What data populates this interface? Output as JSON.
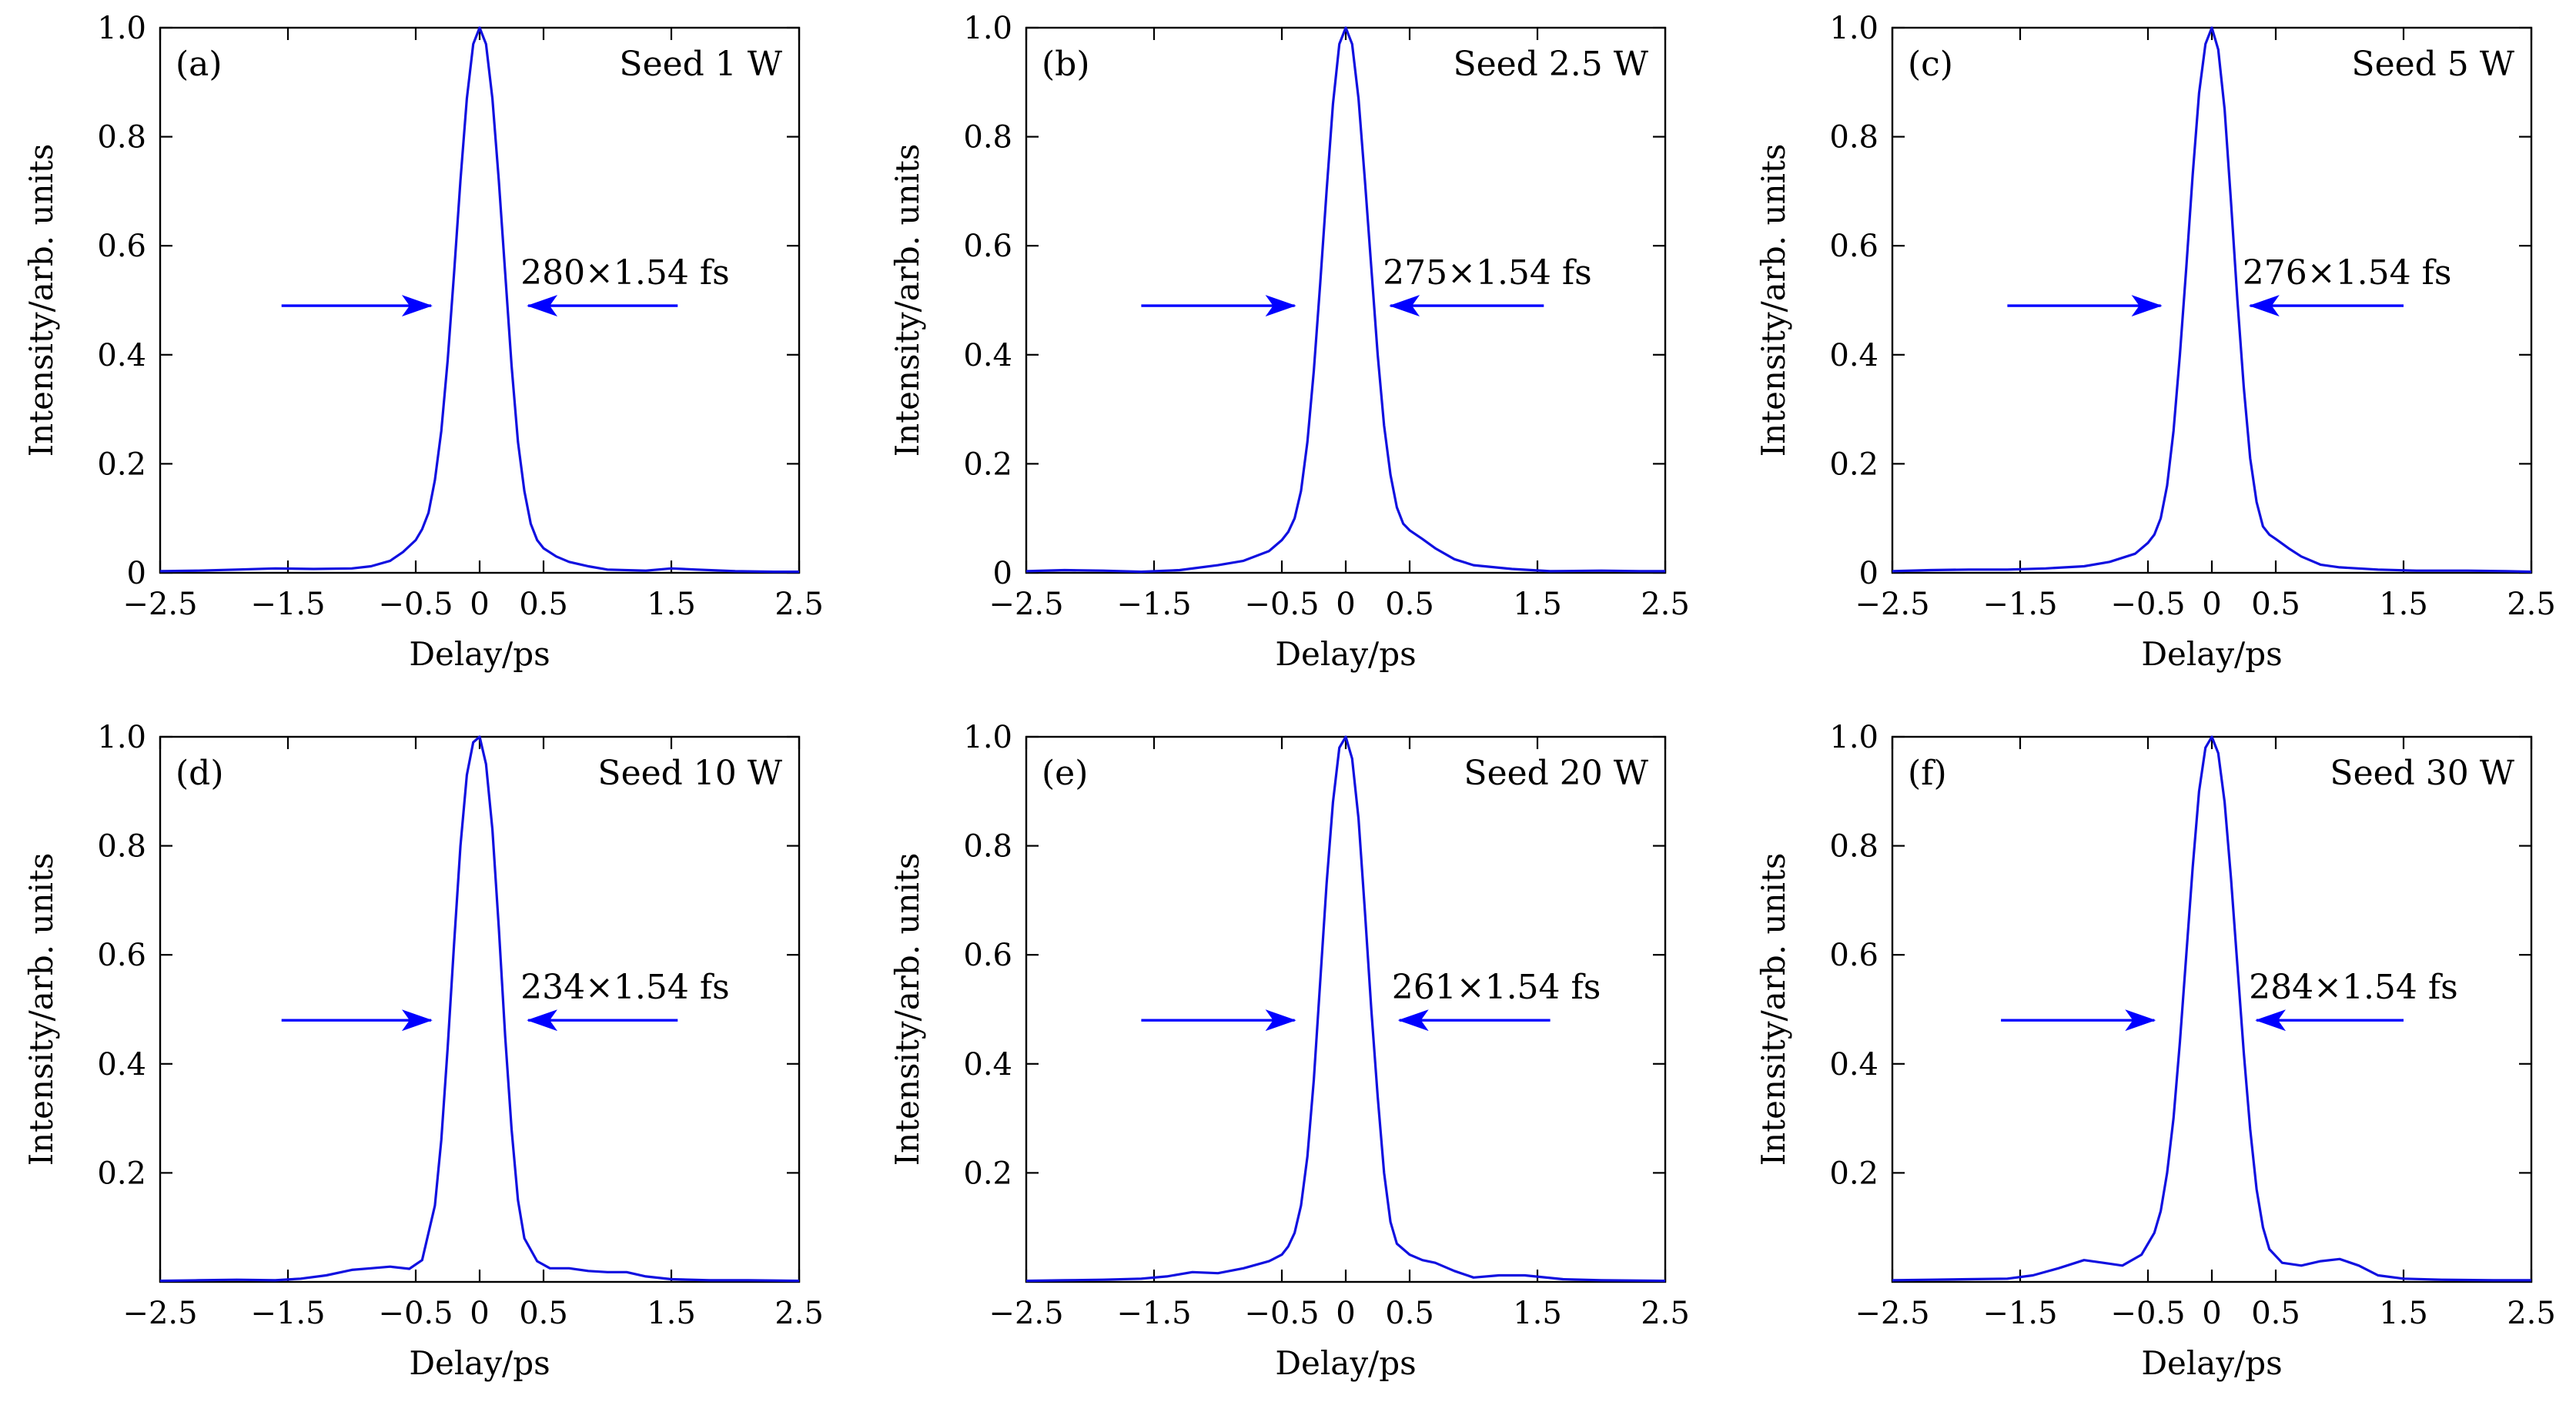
{
  "colors": {
    "trace": "#1010e0",
    "arrow": "#0000ff",
    "axis": "#000000"
  },
  "chart_data": [
    {
      "type": "line",
      "panel_label": "(a)",
      "title": "Seed 1 W",
      "fwhm_label": "280×1.54 fs",
      "xlabel": "Delay/ps",
      "ylabel": "Intensity/arb. units",
      "xlim": [
        -2.5,
        2.5
      ],
      "ylim": [
        0,
        1.0
      ],
      "xticks": [
        -2.5,
        -1.5,
        -0.5,
        0,
        0.5,
        1.5,
        2.5
      ],
      "xtick_labels": [
        "−2.5",
        "−1.5",
        "−0.5",
        "0",
        "0.5",
        "1.5",
        "2.5"
      ],
      "yticks": [
        0,
        0.2,
        0.4,
        0.6,
        0.8,
        1.0
      ],
      "ytick_labels": [
        "0",
        "0.2",
        "0.4",
        "0.6",
        "0.8",
        "1.0"
      ],
      "arrows": {
        "left": [
          -1.55,
          -0.38
        ],
        "right": [
          1.55,
          0.38
        ],
        "y": 0.49
      },
      "x": [
        -2.5,
        -2.2,
        -1.9,
        -1.6,
        -1.3,
        -1.0,
        -0.85,
        -0.7,
        -0.6,
        -0.5,
        -0.45,
        -0.4,
        -0.35,
        -0.3,
        -0.25,
        -0.2,
        -0.15,
        -0.1,
        -0.05,
        0.0,
        0.05,
        0.1,
        0.15,
        0.2,
        0.25,
        0.3,
        0.35,
        0.4,
        0.45,
        0.5,
        0.6,
        0.7,
        0.85,
        1.0,
        1.3,
        1.5,
        1.7,
        2.0,
        2.3,
        2.5
      ],
      "y": [
        0.003,
        0.004,
        0.006,
        0.008,
        0.007,
        0.008,
        0.012,
        0.022,
        0.038,
        0.06,
        0.08,
        0.11,
        0.17,
        0.26,
        0.39,
        0.55,
        0.72,
        0.87,
        0.97,
        1.0,
        0.97,
        0.87,
        0.72,
        0.55,
        0.38,
        0.24,
        0.15,
        0.09,
        0.06,
        0.045,
        0.03,
        0.02,
        0.012,
        0.006,
        0.004,
        0.008,
        0.006,
        0.003,
        0.002,
        0.002
      ]
    },
    {
      "type": "line",
      "panel_label": "(b)",
      "title": "Seed 2.5 W",
      "fwhm_label": "275×1.54 fs",
      "xlabel": "Delay/ps",
      "ylabel": "Intensity/arb. units",
      "xlim": [
        -2.5,
        2.5
      ],
      "ylim": [
        0,
        1.0
      ],
      "xticks": [
        -2.5,
        -1.5,
        -0.5,
        0,
        0.5,
        1.5,
        2.5
      ],
      "xtick_labels": [
        "−2.5",
        "−1.5",
        "−0.5",
        "0",
        "0.5",
        "1.5",
        "2.5"
      ],
      "yticks": [
        0,
        0.2,
        0.4,
        0.6,
        0.8,
        1.0
      ],
      "ytick_labels": [
        "0",
        "0.2",
        "0.4",
        "0.6",
        "0.8",
        "1.0"
      ],
      "arrows": {
        "left": [
          -1.6,
          -0.4
        ],
        "right": [
          1.55,
          0.35
        ],
        "y": 0.49
      },
      "x": [
        -2.5,
        -2.2,
        -1.9,
        -1.6,
        -1.3,
        -1.0,
        -0.8,
        -0.6,
        -0.5,
        -0.45,
        -0.4,
        -0.35,
        -0.3,
        -0.25,
        -0.2,
        -0.15,
        -0.1,
        -0.05,
        0.0,
        0.05,
        0.1,
        0.15,
        0.2,
        0.25,
        0.3,
        0.35,
        0.4,
        0.45,
        0.5,
        0.6,
        0.7,
        0.85,
        1.0,
        1.3,
        1.6,
        2.0,
        2.3,
        2.5
      ],
      "y": [
        0.003,
        0.005,
        0.004,
        0.002,
        0.005,
        0.014,
        0.022,
        0.04,
        0.06,
        0.075,
        0.1,
        0.15,
        0.24,
        0.37,
        0.53,
        0.7,
        0.86,
        0.97,
        1.0,
        0.97,
        0.87,
        0.72,
        0.56,
        0.4,
        0.27,
        0.18,
        0.12,
        0.09,
        0.078,
        0.062,
        0.045,
        0.025,
        0.014,
        0.007,
        0.003,
        0.004,
        0.003,
        0.003
      ]
    },
    {
      "type": "line",
      "panel_label": "(c)",
      "title": "Seed 5 W",
      "fwhm_label": "276×1.54 fs",
      "xlabel": "Delay/ps",
      "ylabel": "Intensity/arb. units",
      "xlim": [
        -2.5,
        2.5
      ],
      "ylim": [
        0,
        1.0
      ],
      "xticks": [
        -2.5,
        -1.5,
        -0.5,
        0,
        0.5,
        1.5,
        2.5
      ],
      "xtick_labels": [
        "−2.5",
        "−1.5",
        "−0.5",
        "0",
        "0.5",
        "1.5",
        "2.5"
      ],
      "yticks": [
        0,
        0.2,
        0.4,
        0.6,
        0.8,
        1.0
      ],
      "ytick_labels": [
        "0",
        "0.2",
        "0.4",
        "0.6",
        "0.8",
        "1.0"
      ],
      "arrows": {
        "left": [
          -1.6,
          -0.4
        ],
        "right": [
          1.5,
          0.3
        ],
        "y": 0.49
      },
      "x": [
        -2.5,
        -2.2,
        -1.9,
        -1.6,
        -1.3,
        -1.0,
        -0.8,
        -0.6,
        -0.5,
        -0.45,
        -0.4,
        -0.35,
        -0.3,
        -0.25,
        -0.2,
        -0.15,
        -0.1,
        -0.05,
        0.0,
        0.05,
        0.1,
        0.15,
        0.2,
        0.25,
        0.3,
        0.35,
        0.4,
        0.45,
        0.5,
        0.6,
        0.7,
        0.85,
        1.0,
        1.3,
        1.6,
        2.0,
        2.3,
        2.5
      ],
      "y": [
        0.003,
        0.005,
        0.006,
        0.006,
        0.008,
        0.012,
        0.02,
        0.035,
        0.055,
        0.07,
        0.1,
        0.16,
        0.26,
        0.4,
        0.56,
        0.73,
        0.88,
        0.97,
        1.0,
        0.96,
        0.85,
        0.68,
        0.5,
        0.34,
        0.21,
        0.13,
        0.085,
        0.07,
        0.062,
        0.045,
        0.03,
        0.015,
        0.01,
        0.006,
        0.004,
        0.004,
        0.003,
        0.002
      ]
    },
    {
      "type": "line",
      "panel_label": "(d)",
      "title": "Seed 10 W",
      "fwhm_label": "234×1.54 fs",
      "xlabel": "Delay/ps",
      "ylabel": "Intensity/arb. units",
      "xlim": [
        -2.5,
        2.5
      ],
      "ylim": [
        0,
        1.0
      ],
      "xticks": [
        -2.5,
        -1.5,
        -0.5,
        0,
        0.5,
        1.5,
        2.5
      ],
      "xtick_labels": [
        "−2.5",
        "−1.5",
        "−0.5",
        "0",
        "0.5",
        "1.5",
        "2.5"
      ],
      "yticks": [
        0.2,
        0.4,
        0.6,
        0.8,
        1.0
      ],
      "ytick_labels": [
        "0.2",
        "0.4",
        "0.6",
        "0.8",
        "1.0"
      ],
      "arrows": {
        "left": [
          -1.55,
          -0.38
        ],
        "right": [
          1.55,
          0.38
        ],
        "y": 0.48
      },
      "x": [
        -2.5,
        -2.2,
        -1.9,
        -1.6,
        -1.4,
        -1.2,
        -1.0,
        -0.85,
        -0.7,
        -0.55,
        -0.45,
        -0.35,
        -0.3,
        -0.25,
        -0.2,
        -0.15,
        -0.1,
        -0.05,
        0.0,
        0.05,
        0.1,
        0.15,
        0.2,
        0.25,
        0.3,
        0.35,
        0.45,
        0.55,
        0.7,
        0.85,
        1.0,
        1.15,
        1.3,
        1.5,
        1.8,
        2.1,
        2.5
      ],
      "y": [
        0.002,
        0.003,
        0.004,
        0.003,
        0.006,
        0.012,
        0.022,
        0.025,
        0.028,
        0.024,
        0.04,
        0.14,
        0.26,
        0.43,
        0.62,
        0.8,
        0.93,
        0.99,
        1.0,
        0.95,
        0.83,
        0.65,
        0.45,
        0.28,
        0.15,
        0.08,
        0.038,
        0.025,
        0.025,
        0.02,
        0.018,
        0.018,
        0.01,
        0.005,
        0.003,
        0.003,
        0.002
      ]
    },
    {
      "type": "line",
      "panel_label": "(e)",
      "title": "Seed 20 W",
      "fwhm_label": "261×1.54 fs",
      "xlabel": "Delay/ps",
      "ylabel": "Intensity/arb. units",
      "xlim": [
        -2.5,
        2.5
      ],
      "ylim": [
        0,
        1.0
      ],
      "xticks": [
        -2.5,
        -1.5,
        -0.5,
        0,
        0.5,
        1.5,
        2.5
      ],
      "xtick_labels": [
        "−2.5",
        "−1.5",
        "−0.5",
        "0",
        "0.5",
        "1.5",
        "2.5"
      ],
      "yticks": [
        0.2,
        0.4,
        0.6,
        0.8,
        1.0
      ],
      "ytick_labels": [
        "0.2",
        "0.4",
        "0.6",
        "0.8",
        "1.0"
      ],
      "arrows": {
        "left": [
          -1.6,
          -0.4
        ],
        "right": [
          1.6,
          0.42
        ],
        "y": 0.48
      },
      "x": [
        -2.5,
        -2.2,
        -1.9,
        -1.6,
        -1.4,
        -1.2,
        -1.0,
        -0.8,
        -0.6,
        -0.5,
        -0.45,
        -0.4,
        -0.35,
        -0.3,
        -0.25,
        -0.2,
        -0.15,
        -0.1,
        -0.05,
        0.0,
        0.05,
        0.1,
        0.15,
        0.2,
        0.25,
        0.3,
        0.35,
        0.4,
        0.5,
        0.6,
        0.7,
        0.85,
        1.0,
        1.2,
        1.4,
        1.7,
        2.0,
        2.5
      ],
      "y": [
        0.002,
        0.003,
        0.004,
        0.006,
        0.01,
        0.018,
        0.016,
        0.025,
        0.038,
        0.05,
        0.065,
        0.09,
        0.14,
        0.23,
        0.37,
        0.55,
        0.73,
        0.88,
        0.98,
        1.0,
        0.96,
        0.85,
        0.68,
        0.5,
        0.34,
        0.2,
        0.11,
        0.07,
        0.05,
        0.04,
        0.035,
        0.02,
        0.008,
        0.012,
        0.012,
        0.005,
        0.003,
        0.002
      ]
    },
    {
      "type": "line",
      "panel_label": "(f)",
      "title": "Seed 30 W",
      "fwhm_label": "284×1.54 fs",
      "xlabel": "Delay/ps",
      "ylabel": "Intensity/arb. units",
      "xlim": [
        -2.5,
        2.5
      ],
      "ylim": [
        0,
        1.0
      ],
      "xticks": [
        -2.5,
        -1.5,
        -0.5,
        0,
        0.5,
        1.5,
        2.5
      ],
      "xtick_labels": [
        "−2.5",
        "−1.5",
        "−0.5",
        "0",
        "0.5",
        "1.5",
        "2.5"
      ],
      "yticks": [
        0.2,
        0.4,
        0.6,
        0.8,
        1.0
      ],
      "ytick_labels": [
        "0.2",
        "0.4",
        "0.6",
        "0.8",
        "1.0"
      ],
      "arrows": {
        "left": [
          -1.65,
          -0.45
        ],
        "right": [
          1.5,
          0.35
        ],
        "y": 0.48
      },
      "x": [
        -2.5,
        -2.2,
        -1.9,
        -1.6,
        -1.4,
        -1.2,
        -1.0,
        -0.85,
        -0.7,
        -0.55,
        -0.45,
        -0.4,
        -0.35,
        -0.3,
        -0.25,
        -0.2,
        -0.15,
        -0.1,
        -0.05,
        0.0,
        0.05,
        0.1,
        0.15,
        0.2,
        0.25,
        0.3,
        0.35,
        0.4,
        0.45,
        0.55,
        0.7,
        0.85,
        1.0,
        1.15,
        1.3,
        1.5,
        1.8,
        2.2,
        2.5
      ],
      "y": [
        0.003,
        0.004,
        0.005,
        0.006,
        0.012,
        0.025,
        0.04,
        0.035,
        0.03,
        0.05,
        0.09,
        0.13,
        0.2,
        0.3,
        0.44,
        0.6,
        0.76,
        0.9,
        0.98,
        1.0,
        0.97,
        0.88,
        0.74,
        0.58,
        0.42,
        0.28,
        0.17,
        0.1,
        0.06,
        0.035,
        0.03,
        0.038,
        0.042,
        0.03,
        0.012,
        0.006,
        0.004,
        0.003,
        0.003
      ]
    }
  ]
}
